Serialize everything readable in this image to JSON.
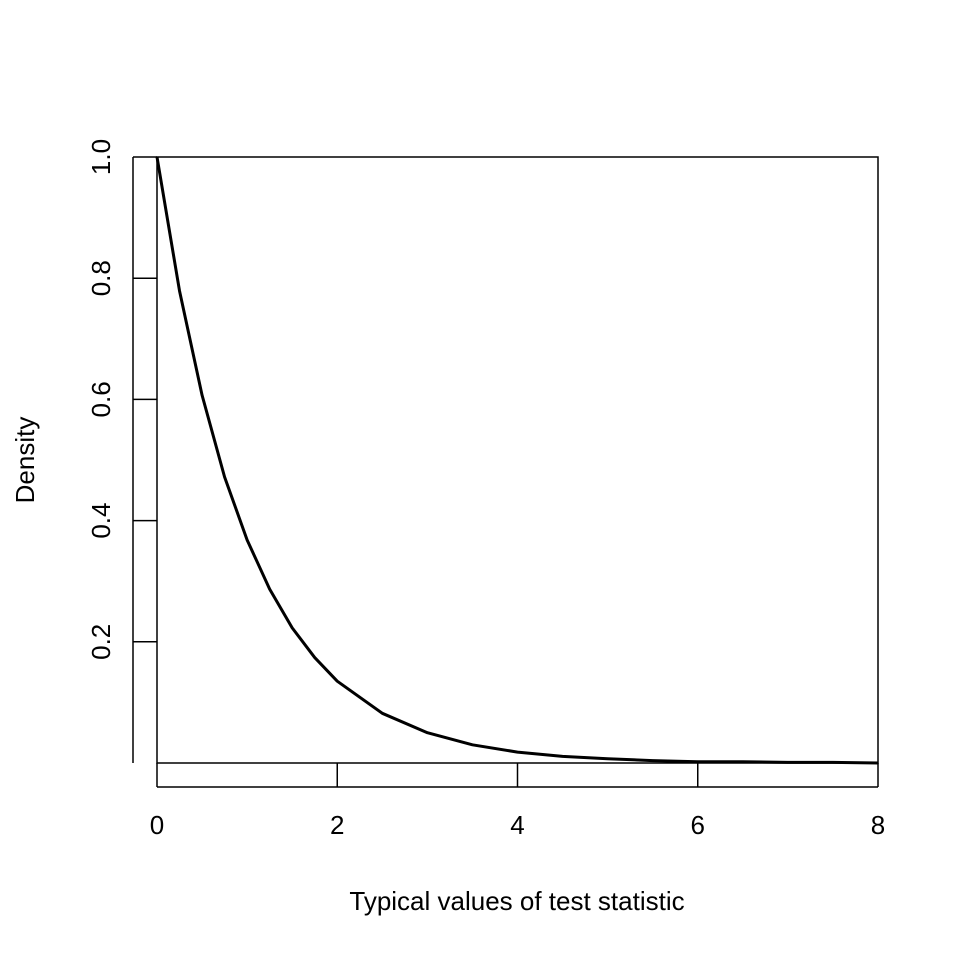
{
  "chart_data": {
    "type": "line",
    "title": "",
    "xlabel": "Typical values of test statistic",
    "ylabel": "Density",
    "xlim": [
      0,
      8
    ],
    "ylim": [
      0,
      1.0
    ],
    "x_ticks": [
      0,
      2,
      4,
      6,
      8
    ],
    "x_tick_labels": [
      "0",
      "2",
      "4",
      "6",
      "8"
    ],
    "y_ticks": [
      0.2,
      0.4,
      0.6,
      0.8,
      1.0
    ],
    "y_tick_labels": [
      "0.2",
      "0.4",
      "0.6",
      "0.8",
      "1.0"
    ],
    "grid": false,
    "series": [
      {
        "x": [
          0,
          0.25,
          0.5,
          0.75,
          1,
          1.25,
          1.5,
          1.75,
          2,
          2.5,
          3,
          3.5,
          4,
          4.5,
          5,
          5.5,
          6,
          6.5,
          7,
          7.5,
          8
        ],
        "values": [
          1.0,
          0.779,
          0.607,
          0.472,
          0.368,
          0.287,
          0.223,
          0.174,
          0.135,
          0.082,
          0.05,
          0.03,
          0.018,
          0.011,
          0.007,
          0.004,
          0.002,
          0.002,
          0.001,
          0.001,
          0.0
        ]
      }
    ],
    "colors": {
      "line": "#000000",
      "axes": "#000000"
    }
  }
}
